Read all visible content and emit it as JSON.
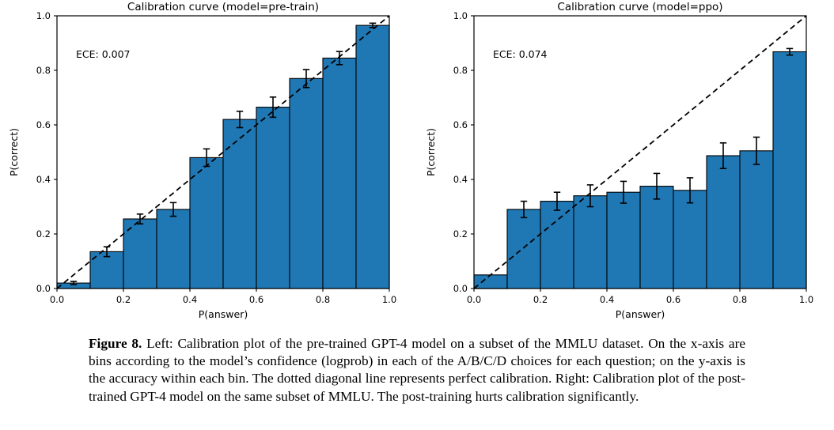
{
  "figure": {
    "caption_label": "Figure 8.",
    "caption_text": "Left: Calibration plot of the pre-trained GPT-4 model on a subset of the MMLU dataset. On the x-axis are bins according to the model’s confidence (logprob) in each of the A/B/C/D choices for each question; on the y-axis is the accuracy within each bin. The dotted diagonal line represents perfect calibration. Right: Calibration plot of the post-trained GPT-4 model on the same subset of MMLU. The post-training hurts calibration significantly."
  },
  "chart_data": [
    {
      "type": "bar",
      "title": "Calibration curve (model=pre-train)",
      "annotation": "ECE: 0.007",
      "xlabel": "P(answer)",
      "ylabel": "P(correct)",
      "xlim": [
        0.0,
        1.0
      ],
      "ylim": [
        0.0,
        1.0
      ],
      "xticks": [
        "0.0",
        "0.2",
        "0.4",
        "0.6",
        "0.8",
        "1.0"
      ],
      "yticks": [
        "0.0",
        "0.2",
        "0.4",
        "0.6",
        "0.8",
        "1.0"
      ],
      "grid": false,
      "diagonal_reference_line": true,
      "bin_edges": [
        0.0,
        0.1,
        0.2,
        0.3,
        0.4,
        0.5,
        0.6,
        0.7,
        0.8,
        0.9,
        1.0
      ],
      "values": [
        0.02,
        0.135,
        0.255,
        0.29,
        0.48,
        0.62,
        0.665,
        0.77,
        0.845,
        0.965
      ],
      "errors": [
        0.006,
        0.018,
        0.018,
        0.025,
        0.032,
        0.03,
        0.037,
        0.033,
        0.024,
        0.008
      ],
      "bar_color": "#1f77b4",
      "edge_color": "#000000",
      "line_color": "#000000"
    },
    {
      "type": "bar",
      "title": "Calibration curve (model=ppo)",
      "annotation": "ECE: 0.074",
      "xlabel": "P(answer)",
      "ylabel": "P(correct)",
      "xlim": [
        0.0,
        1.0
      ],
      "ylim": [
        0.0,
        1.0
      ],
      "xticks": [
        "0.0",
        "0.2",
        "0.4",
        "0.6",
        "0.8",
        "1.0"
      ],
      "yticks": [
        "0.0",
        "0.2",
        "0.4",
        "0.6",
        "0.8",
        "1.0"
      ],
      "grid": false,
      "diagonal_reference_line": true,
      "bin_edges": [
        0.0,
        0.1,
        0.2,
        0.3,
        0.4,
        0.5,
        0.6,
        0.7,
        0.8,
        0.9,
        1.0
      ],
      "values": [
        0.05,
        0.29,
        0.32,
        0.34,
        0.353,
        0.375,
        0.36,
        0.487,
        0.505,
        0.868
      ],
      "errors": [
        0,
        0.03,
        0.033,
        0.04,
        0.04,
        0.047,
        0.046,
        0.047,
        0.05,
        0.012
      ],
      "bar_color": "#1f77b4",
      "edge_color": "#000000",
      "line_color": "#000000"
    }
  ]
}
